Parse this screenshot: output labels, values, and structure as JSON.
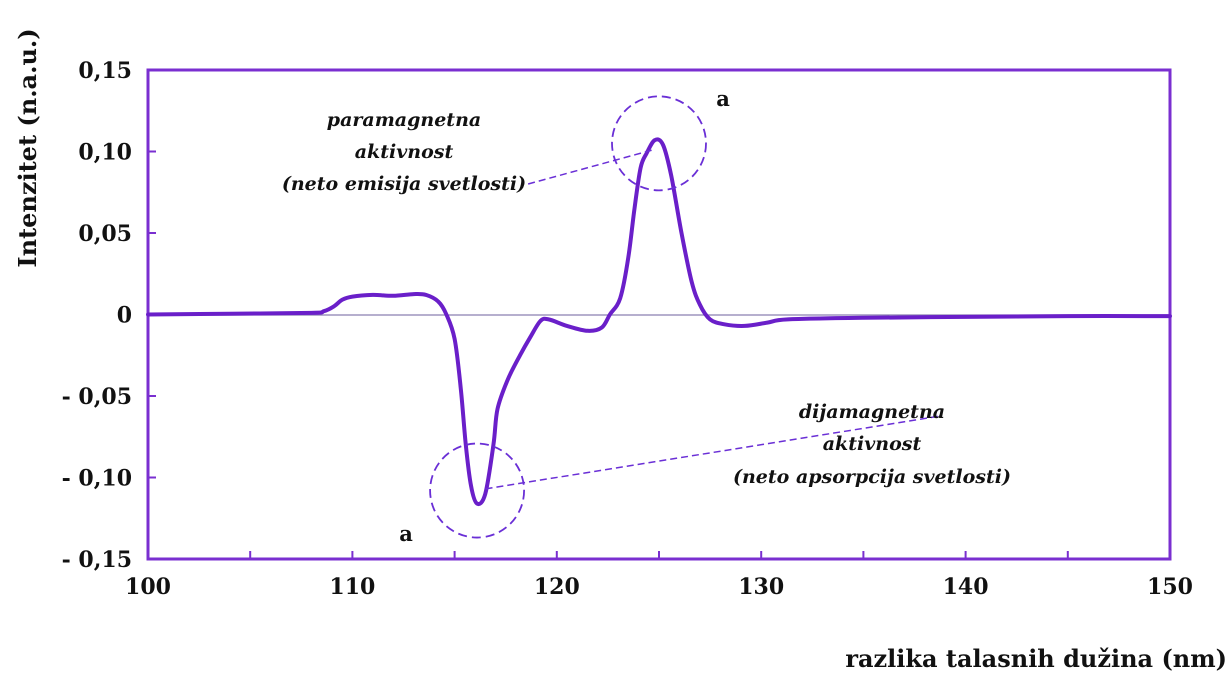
{
  "chart_data": {
    "type": "line",
    "xlabel": "razlika talasnih dužina (nm)",
    "ylabel": "Intenzitet (n.a.u.)",
    "xlim": [
      100,
      150
    ],
    "ylim": [
      -0.15,
      0.15
    ],
    "x_ticks": [
      {
        "value": 100,
        "label": "100"
      },
      {
        "value": 110,
        "label": "110"
      },
      {
        "value": 120,
        "label": "120"
      },
      {
        "value": 130,
        "label": "130"
      },
      {
        "value": 140,
        "label": "140"
      },
      {
        "value": 150,
        "label": "150"
      }
    ],
    "y_ticks": [
      {
        "value": 0.15,
        "label": "0,15"
      },
      {
        "value": 0.1,
        "label": "0,10"
      },
      {
        "value": 0.05,
        "label": "0,05"
      },
      {
        "value": 0,
        "label": "0"
      },
      {
        "value": -0.05,
        "label": "- 0,05"
      },
      {
        "value": -0.1,
        "label": "- 0,10"
      },
      {
        "value": -0.15,
        "label": "- 0,15"
      }
    ],
    "x_minor_step": 5,
    "zero_line": true,
    "grid": false,
    "colors": {
      "line": "#6a1fc9",
      "axes": "#7a2fd0",
      "zero": "#8a7fb0",
      "annotation": "#6a2fd6"
    },
    "series": [
      {
        "x": [
          100,
          104,
          108,
          108.6,
          109.1,
          109.5,
          110,
          111,
          112,
          113,
          113.6,
          114.2,
          114.6,
          115,
          115.3,
          115.55,
          115.8,
          116.1,
          116.5,
          116.9,
          117.1,
          117.6,
          118.2,
          118.7,
          119.2,
          119.6,
          120.5,
          121.5,
          122.2,
          122.6,
          123.1,
          123.5,
          123.8,
          124.1,
          124.4,
          124.8,
          125.2,
          125.6,
          126.1,
          126.6,
          127,
          127.5,
          128.2,
          129.2,
          130.3,
          131.3,
          135,
          140,
          145,
          150
        ],
        "y": [
          0,
          0.0005,
          0.001,
          0.002,
          0.005,
          0.009,
          0.011,
          0.012,
          0.0115,
          0.0125,
          0.012,
          0.008,
          0.0,
          -0.015,
          -0.045,
          -0.08,
          -0.105,
          -0.116,
          -0.11,
          -0.08,
          -0.058,
          -0.04,
          -0.025,
          -0.014,
          -0.004,
          -0.003,
          -0.007,
          -0.01,
          -0.008,
          0.0,
          0.01,
          0.035,
          0.065,
          0.09,
          0.099,
          0.107,
          0.104,
          0.085,
          0.05,
          0.02,
          0.006,
          -0.003,
          -0.006,
          -0.007,
          -0.005,
          -0.003,
          -0.002,
          -0.0015,
          -0.001,
          -0.001
        ]
      }
    ],
    "annotations": [
      {
        "lines": [
          "paramagnetna",
          "aktivnost",
          "(neto emisija svetlosti)"
        ],
        "letter": "a",
        "circle_center": [
          125,
          0.105
        ],
        "pointer_to": [
          124.7,
          0.101
        ]
      },
      {
        "lines": [
          "dijamagnetna",
          "aktivnost",
          "(neto apsorpcija svetlosti)"
        ],
        "letter": "a",
        "circle_center": [
          116.1,
          -0.108
        ],
        "pointer_to": [
          116.5,
          -0.107
        ]
      }
    ]
  }
}
